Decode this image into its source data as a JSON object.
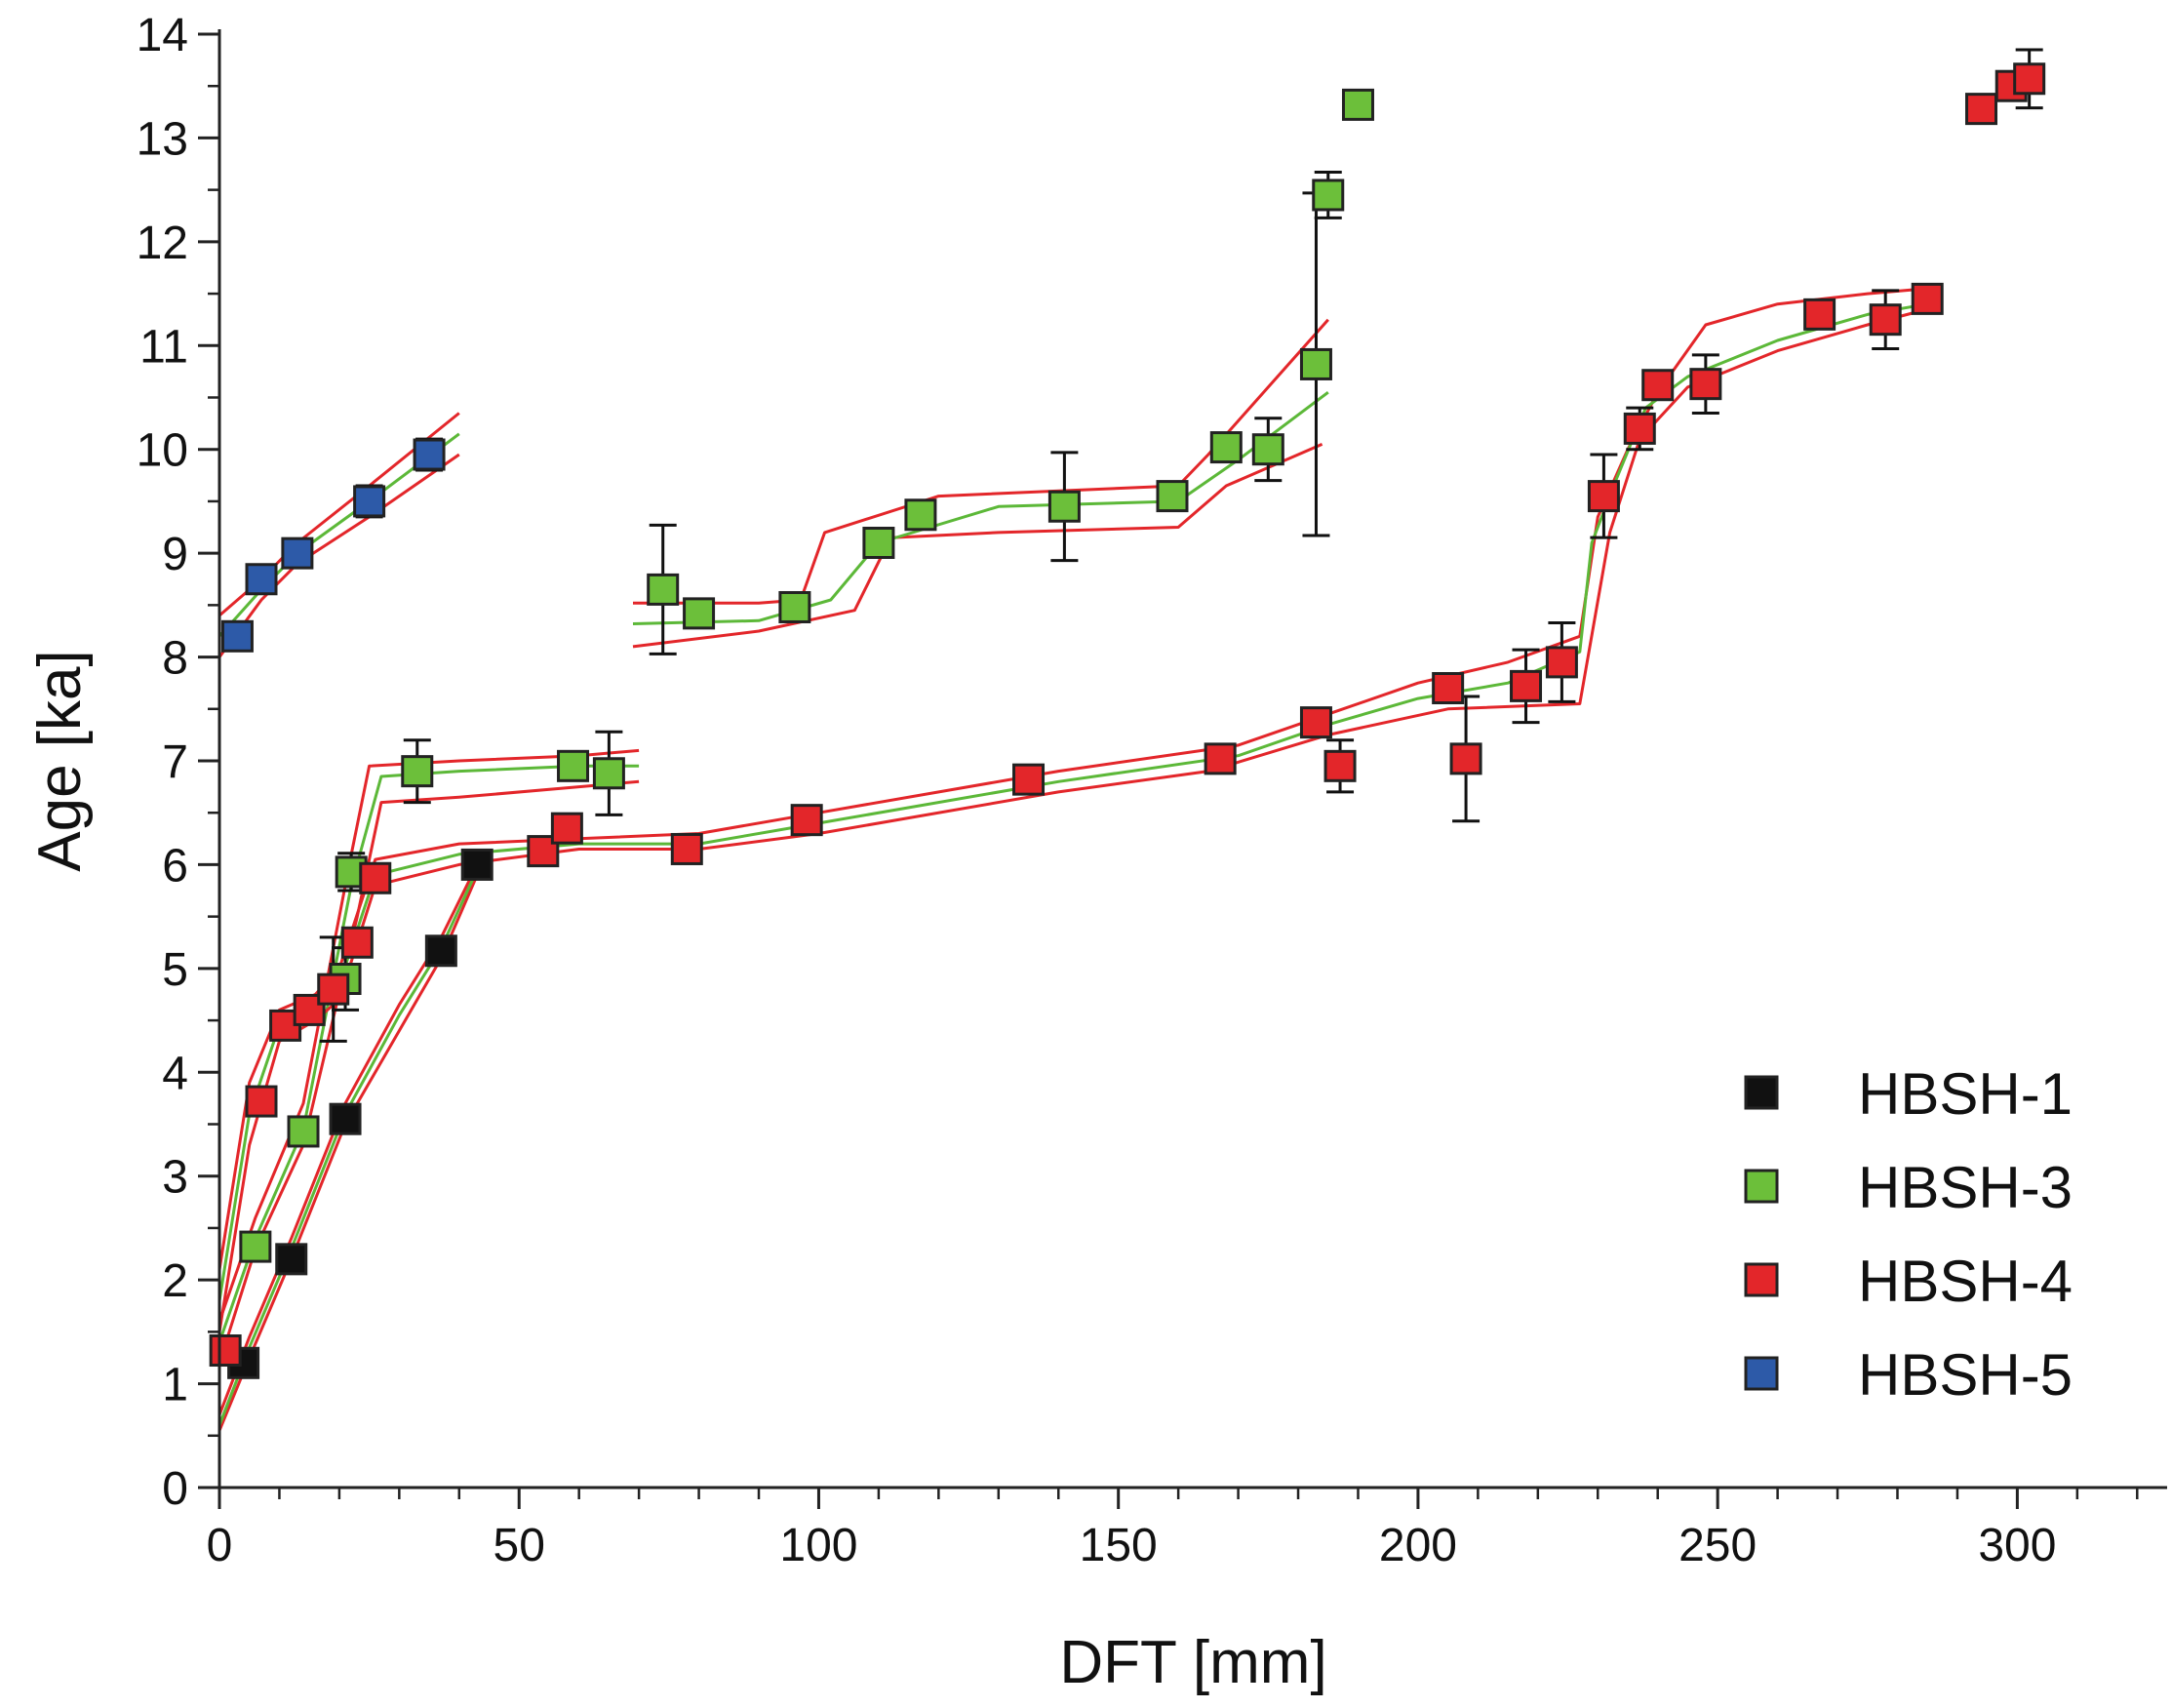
{
  "chart_data": {
    "type": "scatter",
    "title": "",
    "xlabel": "DFT [mm]",
    "ylabel": "Age [ka]",
    "xlim": [
      0,
      325
    ],
    "ylim": [
      0,
      14
    ],
    "x_ticks": [
      0,
      50,
      100,
      150,
      200,
      250,
      300
    ],
    "x_tick_labels": [
      "0",
      "50",
      "100",
      "150",
      "200",
      "250",
      "300"
    ],
    "y_ticks": [
      0,
      1,
      2,
      3,
      4,
      5,
      6,
      7,
      8,
      9,
      10,
      11,
      12,
      13,
      14
    ],
    "y_tick_labels": [
      "0",
      "1",
      "2",
      "3",
      "4",
      "5",
      "6",
      "7",
      "8",
      "9",
      "10",
      "11",
      "12",
      "13",
      "14"
    ],
    "grid": false,
    "legend_position": "bottom-right",
    "series": [
      {
        "name": "HBSH-1",
        "color": "#111111",
        "points": [
          {
            "x": 4,
            "y": 1.2,
            "err": 0.05
          },
          {
            "x": 12,
            "y": 2.2,
            "err": 0.05
          },
          {
            "x": 21,
            "y": 3.55,
            "err": 0.05
          },
          {
            "x": 37,
            "y": 5.17,
            "err": 0.05
          },
          {
            "x": 43,
            "y": 6.0,
            "err": 0.05
          }
        ],
        "model": {
          "median": [
            [
              0,
              0.6
            ],
            [
              5,
              1.35
            ],
            [
              12,
              2.3
            ],
            [
              21,
              3.6
            ],
            [
              30,
              4.55
            ],
            [
              37,
              5.2
            ],
            [
              43,
              5.95
            ]
          ],
          "lower": [
            [
              0,
              0.55
            ],
            [
              5,
              1.25
            ],
            [
              12,
              2.2
            ],
            [
              21,
              3.5
            ],
            [
              30,
              4.4
            ],
            [
              37,
              5.1
            ],
            [
              43,
              5.9
            ]
          ],
          "upper": [
            [
              0,
              0.7
            ],
            [
              5,
              1.45
            ],
            [
              12,
              2.4
            ],
            [
              21,
              3.7
            ],
            [
              30,
              4.65
            ],
            [
              37,
              5.3
            ],
            [
              43,
              6.0
            ]
          ]
        }
      },
      {
        "name": "HBSH-3",
        "color": "#6cbf3a",
        "points": [
          {
            "x": 6,
            "y": 2.32,
            "err": 0.05
          },
          {
            "x": 14,
            "y": 3.43,
            "err": 0.05
          },
          {
            "x": 21,
            "y": 4.9,
            "err": 0.3
          },
          {
            "x": 22,
            "y": 5.93,
            "err": 0.18
          },
          {
            "x": 33,
            "y": 6.9,
            "err": 0.3
          },
          {
            "x": 59,
            "y": 6.95,
            "err": 0.05
          },
          {
            "x": 65,
            "y": 6.88,
            "err": 0.4
          },
          {
            "x": 74,
            "y": 8.65,
            "err": 0.62
          },
          {
            "x": 80,
            "y": 8.42,
            "err": 0.05
          },
          {
            "x": 96,
            "y": 8.48,
            "err": 0.05
          },
          {
            "x": 110,
            "y": 9.1,
            "err": 0.05
          },
          {
            "x": 117,
            "y": 9.37,
            "err": 0.05
          },
          {
            "x": 141,
            "y": 9.45,
            "err": 0.52
          },
          {
            "x": 159,
            "y": 9.55,
            "err": 0.05
          },
          {
            "x": 168,
            "y": 10.02,
            "err": 0.05
          },
          {
            "x": 175,
            "y": 10.0,
            "err": 0.3
          },
          {
            "x": 183,
            "y": 10.82,
            "err": 1.65
          },
          {
            "x": 185,
            "y": 12.45,
            "err": 0.22
          },
          {
            "x": 190,
            "y": 13.32,
            "err": 0.08
          }
        ],
        "model": {
          "median": [
            [
              0,
              1.4
            ],
            [
              6,
              2.4
            ],
            [
              14,
              3.45
            ],
            [
              22,
              5.8
            ],
            [
              27,
              6.85
            ],
            [
              40,
              6.9
            ],
            [
              60,
              6.95
            ],
            [
              70,
              6.95
            ]
          ],
          "lower": [
            [
              0,
              1.2
            ],
            [
              6,
              2.3
            ],
            [
              14,
              3.3
            ],
            [
              23,
              5.5
            ],
            [
              27,
              6.6
            ],
            [
              40,
              6.65
            ],
            [
              60,
              6.75
            ],
            [
              70,
              6.8
            ]
          ],
          "upper": [
            [
              0,
              1.6
            ],
            [
              6,
              2.6
            ],
            [
              14,
              3.7
            ],
            [
              22,
              6.1
            ],
            [
              25,
              6.95
            ],
            [
              40,
              7.0
            ],
            [
              60,
              7.05
            ],
            [
              70,
              7.1
            ]
          ],
          "segment2": {
            "median": [
              [
                69,
                8.32
              ],
              [
                90,
                8.35
              ],
              [
                102,
                8.55
              ],
              [
                110,
                9.1
              ],
              [
                130,
                9.45
              ],
              [
                160,
                9.5
              ],
              [
                170,
                9.9
              ],
              [
                185,
                10.55
              ]
            ],
            "lower": [
              [
                69,
                8.1
              ],
              [
                90,
                8.25
              ],
              [
                106,
                8.45
              ],
              [
                112,
                9.15
              ],
              [
                130,
                9.2
              ],
              [
                160,
                9.25
              ],
              [
                168,
                9.65
              ],
              [
                184,
                10.05
              ]
            ],
            "upper": [
              [
                69,
                8.52
              ],
              [
                90,
                8.52
              ],
              [
                97,
                8.55
              ],
              [
                101,
                9.2
              ],
              [
                120,
                9.55
              ],
              [
                160,
                9.65
              ],
              [
                165,
                9.95
              ],
              [
                185,
                11.25
              ]
            ]
          }
        }
      },
      {
        "name": "HBSH-4",
        "color": "#e3262a",
        "points": [
          {
            "x": 1,
            "y": 1.32,
            "err": 0.05
          },
          {
            "x": 7,
            "y": 3.72,
            "err": 0.05
          },
          {
            "x": 11,
            "y": 4.45,
            "err": 0.05
          },
          {
            "x": 15,
            "y": 4.6,
            "err": 0.05
          },
          {
            "x": 19,
            "y": 4.8,
            "err": 0.5
          },
          {
            "x": 23,
            "y": 5.25,
            "err": 0.08
          },
          {
            "x": 26,
            "y": 5.87,
            "err": 0.05
          },
          {
            "x": 54,
            "y": 6.13,
            "err": 0.05
          },
          {
            "x": 58,
            "y": 6.35,
            "err": 0.05
          },
          {
            "x": 78,
            "y": 6.15,
            "err": 0.05
          },
          {
            "x": 98,
            "y": 6.43,
            "err": 0.05
          },
          {
            "x": 135,
            "y": 6.82,
            "err": 0.05
          },
          {
            "x": 167,
            "y": 7.02,
            "err": 0.05
          },
          {
            "x": 183,
            "y": 7.37,
            "err": 0.05
          },
          {
            "x": 187,
            "y": 6.95,
            "err": 0.25
          },
          {
            "x": 205,
            "y": 7.7,
            "err": 0.05
          },
          {
            "x": 208,
            "y": 7.02,
            "err": 0.6
          },
          {
            "x": 218,
            "y": 7.72,
            "err": 0.35
          },
          {
            "x": 224,
            "y": 7.95,
            "err": 0.38
          },
          {
            "x": 231,
            "y": 9.55,
            "err": 0.4
          },
          {
            "x": 237,
            "y": 10.2,
            "err": 0.2
          },
          {
            "x": 240,
            "y": 10.62,
            "err": 0.05
          },
          {
            "x": 248,
            "y": 10.63,
            "err": 0.28
          },
          {
            "x": 267,
            "y": 11.3,
            "err": 0.05
          },
          {
            "x": 278,
            "y": 11.25,
            "err": 0.28
          },
          {
            "x": 285,
            "y": 11.45,
            "err": 0.05
          },
          {
            "x": 294,
            "y": 13.28,
            "err": 0.05
          },
          {
            "x": 299,
            "y": 13.5,
            "err": 0.05
          },
          {
            "x": 302,
            "y": 13.57,
            "err": 0.28
          }
        ],
        "model": {
          "median": [
            [
              0,
              1.8
            ],
            [
              5,
              3.6
            ],
            [
              10,
              4.45
            ],
            [
              16,
              4.6
            ],
            [
              20,
              4.85
            ],
            [
              26,
              5.9
            ],
            [
              40,
              6.1
            ],
            [
              60,
              6.2
            ],
            [
              80,
              6.2
            ],
            [
              100,
              6.4
            ],
            [
              140,
              6.8
            ],
            [
              170,
              7.05
            ],
            [
              185,
              7.35
            ],
            [
              200,
              7.6
            ],
            [
              215,
              7.75
            ],
            [
              227,
              8.05
            ],
            [
              229,
              9.1
            ],
            [
              233,
              9.7
            ],
            [
              238,
              10.4
            ],
            [
              245,
              10.7
            ],
            [
              260,
              11.05
            ],
            [
              275,
              11.3
            ],
            [
              285,
              11.4
            ]
          ],
          "lower": [
            [
              0,
              1.5
            ],
            [
              5,
              3.3
            ],
            [
              10,
              4.3
            ],
            [
              16,
              4.5
            ],
            [
              20,
              4.7
            ],
            [
              26,
              5.8
            ],
            [
              40,
              6.0
            ],
            [
              60,
              6.15
            ],
            [
              80,
              6.15
            ],
            [
              100,
              6.3
            ],
            [
              140,
              6.7
            ],
            [
              165,
              6.9
            ],
            [
              185,
              7.25
            ],
            [
              205,
              7.5
            ],
            [
              227,
              7.55
            ],
            [
              232,
              9.2
            ],
            [
              237,
              10.1
            ],
            [
              245,
              10.6
            ],
            [
              260,
              10.95
            ],
            [
              275,
              11.2
            ],
            [
              285,
              11.35
            ]
          ],
          "upper": [
            [
              0,
              2.1
            ],
            [
              5,
              3.9
            ],
            [
              10,
              4.6
            ],
            [
              16,
              4.75
            ],
            [
              20,
              5.0
            ],
            [
              26,
              6.05
            ],
            [
              40,
              6.2
            ],
            [
              60,
              6.25
            ],
            [
              80,
              6.3
            ],
            [
              100,
              6.5
            ],
            [
              140,
              6.9
            ],
            [
              170,
              7.15
            ],
            [
              185,
              7.45
            ],
            [
              200,
              7.75
            ],
            [
              215,
              7.95
            ],
            [
              227,
              8.2
            ],
            [
              230,
              9.35
            ],
            [
              235,
              10.0
            ],
            [
              240,
              10.55
            ],
            [
              248,
              11.2
            ],
            [
              260,
              11.4
            ],
            [
              275,
              11.5
            ],
            [
              285,
              11.55
            ]
          ]
        }
      },
      {
        "name": "HBSH-5",
        "color": "#2d5aa8",
        "points": [
          {
            "x": 3,
            "y": 8.2,
            "err": 0.05
          },
          {
            "x": 7,
            "y": 8.75,
            "err": 0.05
          },
          {
            "x": 13,
            "y": 9.0,
            "err": 0.05
          },
          {
            "x": 25,
            "y": 9.5,
            "err": 0.15
          },
          {
            "x": 35,
            "y": 9.95,
            "err": 0.15
          }
        ],
        "model": {
          "median": [
            [
              0,
              8.2
            ],
            [
              7,
              8.65
            ],
            [
              13,
              9.0
            ],
            [
              25,
              9.5
            ],
            [
              40,
              10.15
            ]
          ],
          "lower": [
            [
              0,
              8.0
            ],
            [
              7,
              8.55
            ],
            [
              13,
              8.9
            ],
            [
              25,
              9.35
            ],
            [
              40,
              9.95
            ]
          ],
          "upper": [
            [
              0,
              8.4
            ],
            [
              7,
              8.75
            ],
            [
              13,
              9.1
            ],
            [
              25,
              9.65
            ],
            [
              40,
              10.35
            ]
          ]
        }
      }
    ],
    "legend": [
      {
        "label": "HBSH-1",
        "color": "#111111"
      },
      {
        "label": "HBSH-3",
        "color": "#6cbf3a"
      },
      {
        "label": "HBSH-4",
        "color": "#e3262a"
      },
      {
        "label": "HBSH-5",
        "color": "#2d5aa8"
      }
    ],
    "model_line_colors": {
      "median": "#5cb838",
      "bounds": "#e3262a"
    }
  }
}
